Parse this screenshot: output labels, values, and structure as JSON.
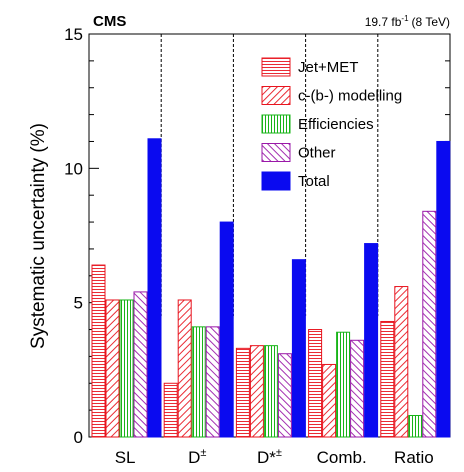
{
  "chart_data": {
    "type": "bar",
    "experiment": "CMS",
    "luminosity": {
      "value": "19.7 fb",
      "superscript": "-1",
      "energy": "(8 TeV)"
    },
    "ylabel": "Systematic uncertainty (%)",
    "ylim": [
      0,
      15
    ],
    "yticks": [
      "0",
      "5",
      "10",
      "15"
    ],
    "categories": [
      {
        "label": "SL",
        "sup": ""
      },
      {
        "label": "D",
        "sup": "±"
      },
      {
        "label": "D*",
        "sup": "±"
      },
      {
        "label": "Comb.",
        "sup": ""
      },
      {
        "label": "Ratio",
        "sup": ""
      }
    ],
    "series": [
      {
        "name": "Jet+MET",
        "color": "#e8141e",
        "pattern": "horizontal-hatch",
        "values": [
          6.4,
          2.0,
          3.3,
          4.0,
          4.3
        ]
      },
      {
        "name": "c-(b-) modelling",
        "color": "#e8141e",
        "pattern": "diagonal-hatch",
        "values": [
          5.1,
          5.1,
          3.4,
          2.7,
          5.6
        ]
      },
      {
        "name": "Efficiencies",
        "color": "#18b418",
        "pattern": "vertical-hatch",
        "values": [
          5.1,
          4.1,
          3.4,
          3.9,
          0.8
        ]
      },
      {
        "name": "Other",
        "color": "#9a18a8",
        "pattern": "backslash-hatch",
        "values": [
          5.4,
          4.1,
          3.1,
          3.6,
          8.4
        ]
      },
      {
        "name": "Total",
        "color": "#0a0af0",
        "pattern": "solid",
        "values": [
          11.1,
          8.0,
          6.6,
          7.2,
          11.0
        ]
      }
    ],
    "legend_position": "top-right",
    "separators": "dashed vertical lines between categories"
  }
}
